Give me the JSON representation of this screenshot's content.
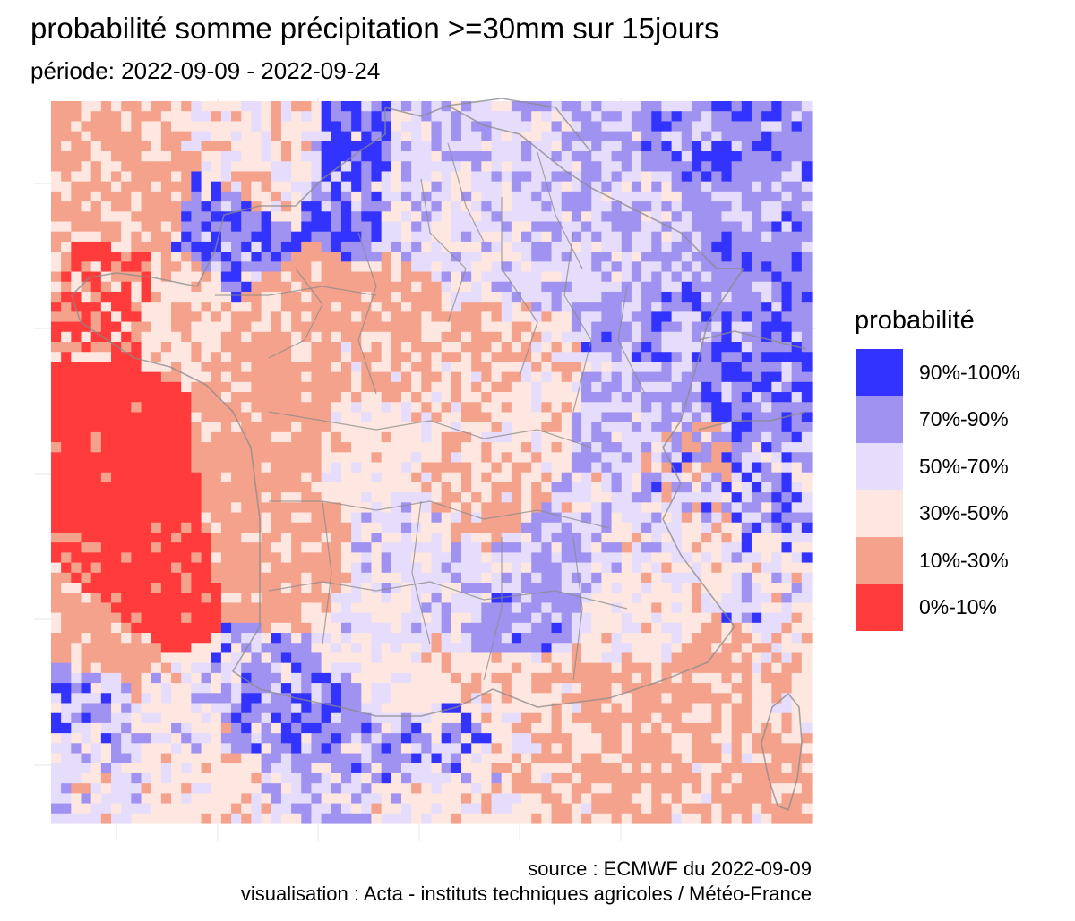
{
  "title": "probabilité somme précipitation >=30mm sur 15jours",
  "subtitle": "période: 2022-09-09 - 2022-09-24",
  "legend": {
    "title": "probabilité",
    "items": [
      {
        "label": "90%-100%",
        "color": "#3333ff"
      },
      {
        "label": "70%-90%",
        "color": "#9f92f0"
      },
      {
        "label": "50%-70%",
        "color": "#e6dcfb"
      },
      {
        "label": "30%-50%",
        "color": "#fde7e0"
      },
      {
        "label": "10%-30%",
        "color": "#f5a28d"
      },
      {
        "label": "0%-10%",
        "color": "#ff3b3b"
      }
    ]
  },
  "caption": {
    "source": "source : ECMWF du 2022-09-09",
    "visualisation": "visualisation : Acta - instituts techniques agricoles / Météo-France"
  },
  "map": {
    "grid_lines": true,
    "borders": [
      "france-departments",
      "coastline",
      "switzerland",
      "italy",
      "belgium",
      "corsica"
    ],
    "colors": {
      "background": "#ffffff",
      "grid": "#ebebeb",
      "border": "#8a8a8a"
    }
  }
}
